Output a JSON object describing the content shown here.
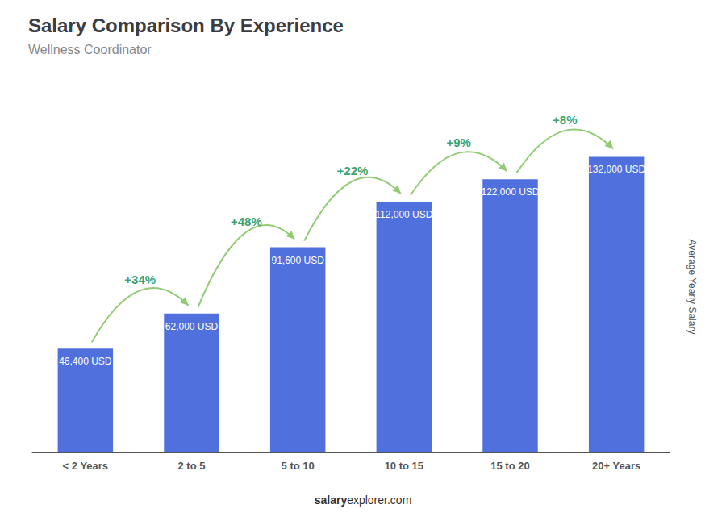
{
  "chart_data": {
    "type": "bar",
    "title": "Salary Comparison By Experience",
    "subtitle": "Wellness Coordinator",
    "categories": [
      "< 2 Years",
      "2 to 5",
      "5 to 10",
      "10 to 15",
      "15 to 20",
      "20+ Years"
    ],
    "values": [
      46400,
      62000,
      91600,
      112000,
      122000,
      132000
    ],
    "value_labels": [
      "46,400 USD",
      "62,000 USD",
      "91,600 USD",
      "112,000 USD",
      "122,000 USD",
      "132,000 USD"
    ],
    "data_labels": true,
    "annotations": [
      "+34%",
      "+48%",
      "+22%",
      "+9%",
      "+8%"
    ],
    "y_label": "Average Yearly Salary",
    "footer_bold": "salary",
    "footer_normal": "explorer.com",
    "ylim": [
      0,
      148000
    ],
    "grid": false,
    "tick_labels": "x"
  }
}
